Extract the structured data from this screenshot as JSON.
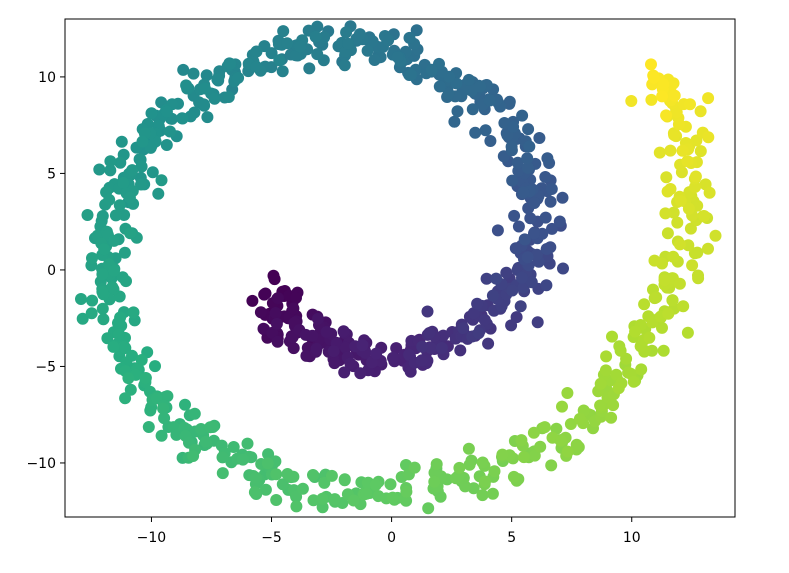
{
  "chart_data": {
    "type": "scatter",
    "title": "",
    "xlabel": "",
    "ylabel": "",
    "xlim": [
      -13.6,
      14.3
    ],
    "ylim": [
      -12.8,
      13.0
    ],
    "x_ticks": [
      -10,
      -5,
      0,
      5,
      10
    ],
    "x_tick_labels": [
      "−10",
      "−5",
      "0",
      "5",
      "10"
    ],
    "y_ticks": [
      -10,
      -5,
      0,
      5,
      10
    ],
    "y_tick_labels": [
      "−10",
      "−5",
      "0",
      "5",
      "10"
    ],
    "grid": false,
    "legend": "none",
    "colormap": "viridis",
    "color_encoding": "position along spiral (arc parameter)",
    "point_count": 1000,
    "series": [
      {
        "color_by": "arc parameter",
        "marker": "circle",
        "points": [
          [
            -4.7,
            -1.0
          ],
          [
            -4.5,
            -2.8
          ],
          [
            -3.5,
            -3.6
          ],
          [
            -2.0,
            -4.2
          ],
          [
            -0.5,
            -4.6
          ],
          [
            1.5,
            -4.2
          ],
          [
            3.2,
            -3.0
          ],
          [
            4.8,
            -1.4
          ],
          [
            5.8,
            0.6
          ],
          [
            6.2,
            3.0
          ],
          [
            5.7,
            5.5
          ],
          [
            4.5,
            7.8
          ],
          [
            3.0,
            9.5
          ],
          [
            1.0,
            10.8
          ],
          [
            -1.5,
            11.6
          ],
          [
            -4.0,
            11.3
          ],
          [
            -6.5,
            10.3
          ],
          [
            -8.6,
            8.6
          ],
          [
            -10.3,
            6.5
          ],
          [
            -11.5,
            3.8
          ],
          [
            -12.0,
            0.8
          ],
          [
            -11.7,
            -2.5
          ],
          [
            -10.6,
            -5.5
          ],
          [
            -8.8,
            -8.0
          ],
          [
            -6.5,
            -9.9
          ],
          [
            -3.8,
            -11.1
          ],
          [
            -1.0,
            -11.6
          ],
          [
            2.0,
            -11.1
          ],
          [
            5.0,
            -10.0
          ],
          [
            7.5,
            -8.3
          ],
          [
            9.5,
            -5.8
          ],
          [
            11.0,
            -3.0
          ],
          [
            12.1,
            0.5
          ],
          [
            12.5,
            4.0
          ],
          [
            12.0,
            7.5
          ],
          [
            11.0,
            10.3
          ]
        ]
      }
    ]
  }
}
